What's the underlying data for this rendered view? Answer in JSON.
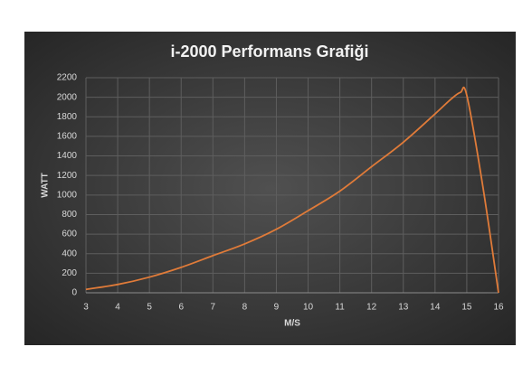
{
  "chart_data": {
    "type": "line",
    "title": "i-2000 Performans Grafiği",
    "x_label": "M/S",
    "y_label": "WATT",
    "x": [
      3,
      4,
      5,
      6,
      7,
      8,
      9,
      10,
      11,
      12,
      13,
      14,
      14.5,
      14.8,
      15,
      15.5,
      16
    ],
    "series": [
      {
        "name": "WATT",
        "color": "#e07b39",
        "values": [
          35,
          85,
          160,
          260,
          380,
          500,
          650,
          840,
          1040,
          1290,
          1540,
          1830,
          1980,
          2050,
          2020,
          1100,
          0
        ]
      }
    ],
    "xlim": [
      3,
      16
    ],
    "xticks": [
      3,
      4,
      5,
      6,
      7,
      8,
      9,
      10,
      11,
      12,
      13,
      14,
      15,
      16
    ],
    "ylim": [
      0,
      2200
    ],
    "yticks": [
      0,
      200,
      400,
      600,
      800,
      1000,
      1200,
      1400,
      1600,
      1800,
      2000,
      2200
    ],
    "grid": true
  }
}
